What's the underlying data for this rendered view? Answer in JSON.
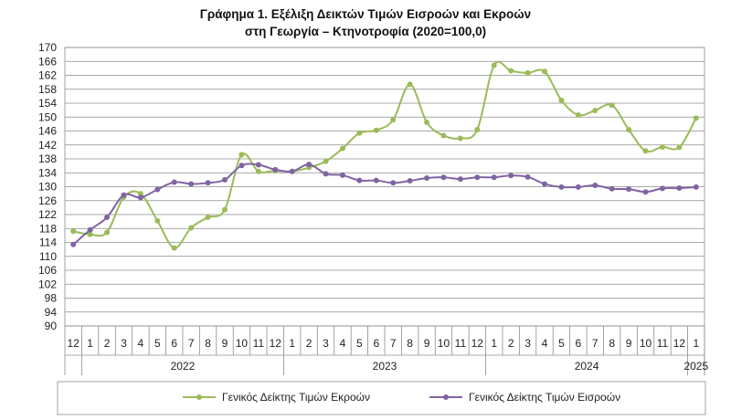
{
  "title_line1": "Γράφημα 1. Εξέλιξη Δεικτών Τιμών Εισροών και Εκροών",
  "title_line2": "στη Γεωργία – Κτηνοτροφία (2020=100,0)",
  "chart_data": {
    "type": "line",
    "ylim": [
      90,
      170
    ],
    "ytick_step": 4,
    "grid": true,
    "legend_position": "bottom",
    "x_month_labels": [
      "12",
      "1",
      "2",
      "3",
      "4",
      "5",
      "6",
      "7",
      "8",
      "9",
      "10",
      "11",
      "12",
      "1",
      "2",
      "3",
      "4",
      "5",
      "6",
      "7",
      "8",
      "9",
      "10",
      "11",
      "12",
      "1",
      "2",
      "3",
      "4",
      "5",
      "6",
      "7",
      "8",
      "9",
      "10",
      "11",
      "12",
      "1"
    ],
    "x_year_groups": [
      {
        "label": "2022",
        "start": 1,
        "end": 12
      },
      {
        "label": "2023",
        "start": 13,
        "end": 24
      },
      {
        "label": "2024",
        "start": 25,
        "end": 36
      },
      {
        "label": "2025",
        "start": 37,
        "end": 37
      }
    ],
    "series": [
      {
        "name": "Γενικός Δείκτης Τιμών Εκροών",
        "color": "#9bbb59",
        "values": [
          117.2,
          116.3,
          116.9,
          127.0,
          128.0,
          120.2,
          112.4,
          118.2,
          121.2,
          123.4,
          139.2,
          134.4,
          134.6,
          134.4,
          135.5,
          137.3,
          141.0,
          145.4,
          146.2,
          149.2,
          159.4,
          148.5,
          144.7,
          143.9,
          146.4,
          164.9,
          163.3,
          162.7,
          163.1,
          154.8,
          150.6,
          151.9,
          153.4,
          146.4,
          140.3,
          141.4,
          141.3,
          149.7
        ]
      },
      {
        "name": "Γενικός Δείκτης Τιμών Εισροών",
        "color": "#8064a2",
        "values": [
          113.4,
          117.6,
          121.2,
          127.6,
          126.9,
          129.2,
          131.3,
          130.8,
          131.1,
          132.0,
          136.1,
          136.3,
          134.9,
          134.4,
          136.4,
          133.7,
          133.3,
          131.8,
          131.8,
          131.1,
          131.7,
          132.5,
          132.7,
          132.2,
          132.7,
          132.7,
          133.2,
          132.8,
          130.8,
          129.9,
          129.9,
          130.4,
          129.4,
          129.3,
          128.5,
          129.5,
          129.6,
          129.9
        ]
      }
    ]
  }
}
